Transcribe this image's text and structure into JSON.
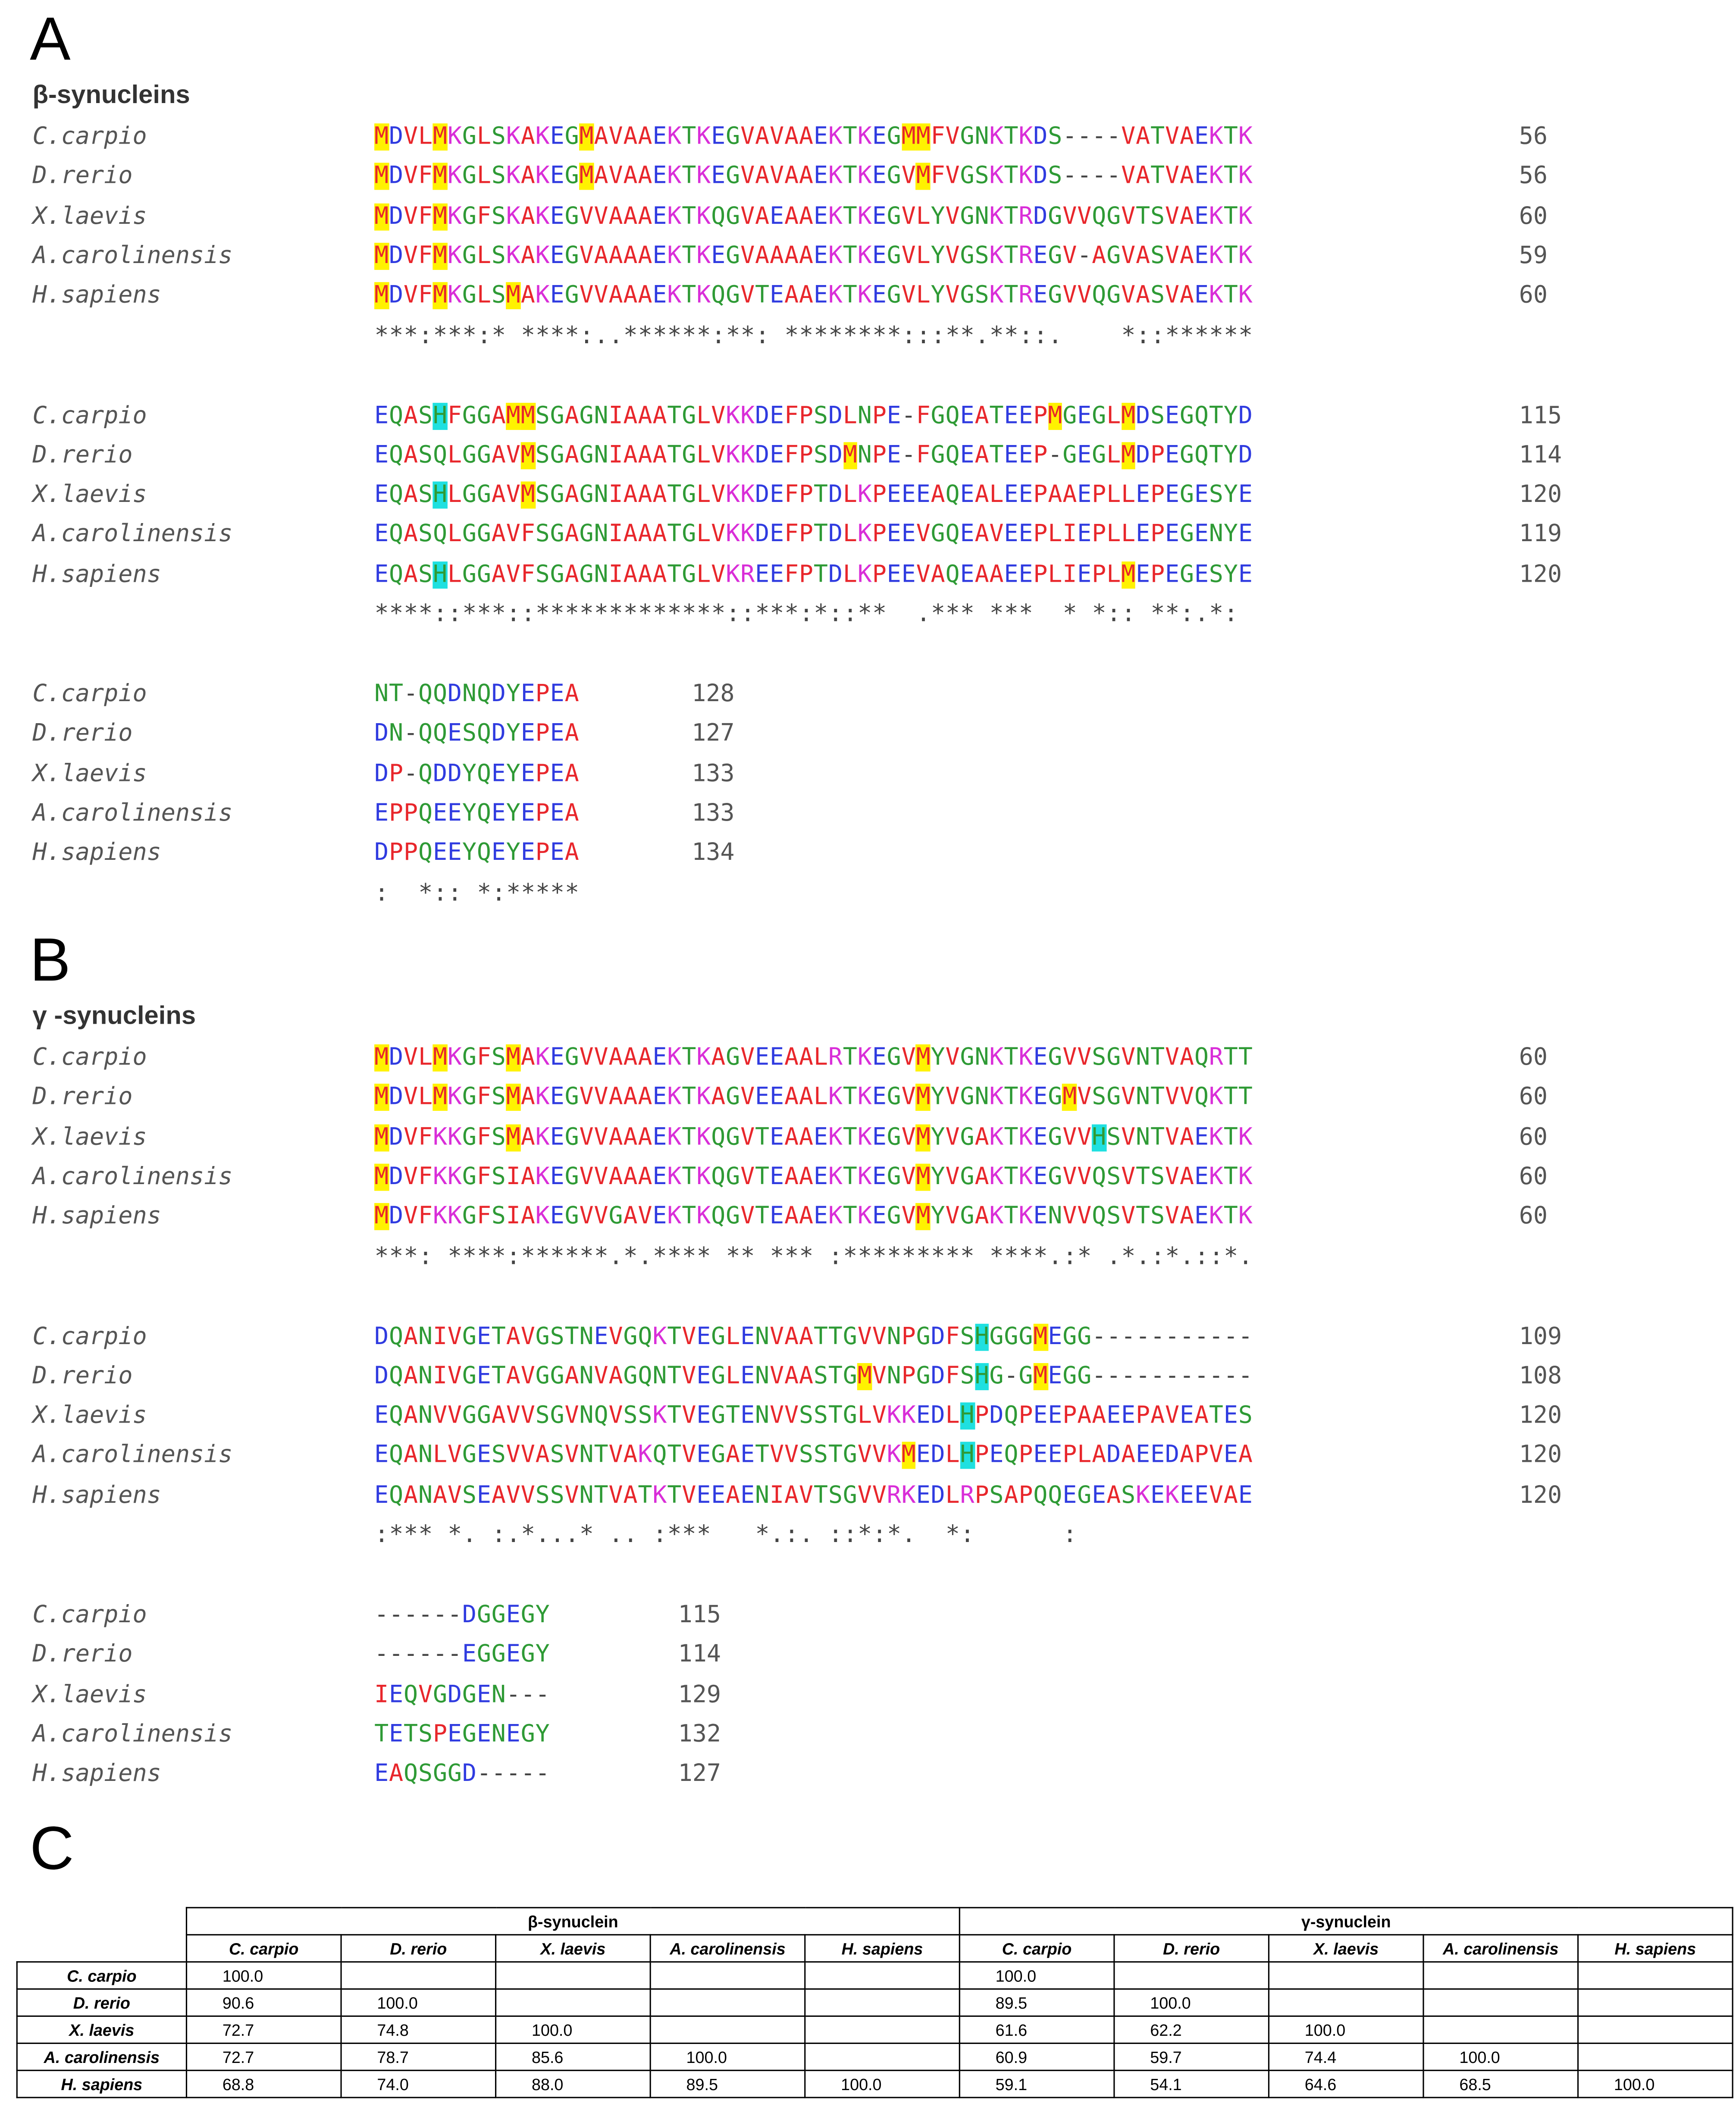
{
  "panels": {
    "a": "A",
    "b": "B",
    "c": "C"
  },
  "beta": {
    "title": "β-synucleins",
    "blocks": [
      {
        "rows": [
          {
            "species": "C.carpio",
            "seq": "MDVLMKGLSKAKEGMAVAAEKTKEGVAVAAEKTKEGMMFVGNKTKDS----VATVAEKTK",
            "num": "56"
          },
          {
            "species": "D.rerio",
            "seq": "MDVFMKGLSKAKEGMAVAAEKTKEGVAVAAEKTKEGVMFVGSKTKDS----VATVAEKTK",
            "num": "56"
          },
          {
            "species": "X.laevis",
            "seq": "MDVFMKGFSKAKEGVVAAAEKTKQGVAEAAEKTKEGVLYVGNKTRDGVVQGVTSVAEKTK",
            "num": "60"
          },
          {
            "species": "A.carolinensis",
            "seq": "MDVFMKGLSKAKEGVAAAAEKTKEGVAAAAEKTKEGVLYVGSKTREGV-AGVASVAEKTK",
            "num": "59"
          },
          {
            "species": "H.sapiens",
            "seq": "MDVFMKGLSMAKEGVVAAAEKTKQGVTEAAEKTKEGVLYVGSKTREGVVQGVASVAEKTK",
            "num": "60"
          }
        ],
        "cons": "***:***:* ****:..******:**: ********:::**.**::.    *::******"
      },
      {
        "rows": [
          {
            "species": "C.carpio",
            "seq": "EQASHFGGAMMSGAGNIAAATGLVKKDEFPSDLNPE-FGQEATEEPMGEGLMDSEGQTYD",
            "num": "115"
          },
          {
            "species": "D.rerio",
            "seq": "EQASQLGGAVMSGAGNIAAATGLVKKDEFPSDMNPE-FGQEATEEP-GEGLMDPEGQTYD",
            "num": "114"
          },
          {
            "species": "X.laevis",
            "seq": "EQASHLGGAVMSGAGNIAAATGLVKKDEFPTDLKPEEEAQEALEEPAAEPLLEPEGESYE",
            "num": "120"
          },
          {
            "species": "A.carolinensis",
            "seq": "EQASQLGGAVFSGAGNIAAATGLVKKDEFPTDLKPEEVGQEAVEEPLIEPLLEPEGENYE",
            "num": "119"
          },
          {
            "species": "H.sapiens",
            "seq": "EQASHLGGAVFSGAGNIAAATGLVKREEFPTDLKPEEVAQEAAEEPLIEPLMEPEGESYE",
            "num": "120"
          }
        ],
        "cons": "****::***::*************::***:*::**  .*** ***  * *:: **:.*:"
      },
      {
        "rows": [
          {
            "species": "C.carpio",
            "seq": "NT-QQDNQDYEPEA",
            "num": "128"
          },
          {
            "species": "D.rerio",
            "seq": "DN-QQESQDYEPEA",
            "num": "127"
          },
          {
            "species": "X.laevis",
            "seq": "DP-QDDYQEYEPEA",
            "num": "133"
          },
          {
            "species": "A.carolinensis",
            "seq": "EPPQEEYQEYEPEA",
            "num": "133"
          },
          {
            "species": "H.sapiens",
            "seq": "DPPQEEYQEYEPEA",
            "num": "134"
          }
        ],
        "cons": ":  *:: *:*****"
      }
    ]
  },
  "gamma": {
    "title": "γ -synucleins",
    "blocks": [
      {
        "rows": [
          {
            "species": "C.carpio",
            "seq": "MDVLMKGFSMAKEGVVAAAEKTKAGVEEAALRTKEGVMYVGNKTKEGVVSGVNTVAQRTT",
            "num": "60"
          },
          {
            "species": "D.rerio",
            "seq": "MDVLMKGFSMAKEGVVAAAEKTKAGVEEAALKTKEGVMYVGNKTKEGMVSGVNTVVQKTT",
            "num": "60"
          },
          {
            "species": "X.laevis",
            "seq": "MDVFKKGFSMAKEGVVAAAEKTKQGVTEAAEKTKEGVMYVGAKTKEGVVHSVNTVAEKTK",
            "num": "60"
          },
          {
            "species": "A.carolinensis",
            "seq": "MDVFKKGFSIAKEGVVAAAEKTKQGVTEAAEKTKEGVMYVGAKTKEGVVQSVTSVAEKTK",
            "num": "60"
          },
          {
            "species": "H.sapiens",
            "seq": "MDVFKKGFSIAKEGVVGAVEKTKQGVTEAAEKTKEGVMYVGAKTKENVVQSVTSVAEKTK",
            "num": "60"
          }
        ],
        "cons": "***: ****:******.*.**** ** *** :********* ****.:* .*.:*.::*."
      },
      {
        "rows": [
          {
            "species": "C.carpio",
            "seq": "DQANIVGETAVGSTNEVGQKTVEGLENVAATTGVVNPGDFSHGGGMEGG-----------",
            "num": "109"
          },
          {
            "species": "D.rerio",
            "seq": "DQANIVGETAVGGANVAGQNTVEGLENVAASTGMVNPGDFSHG-GMEGG-----------",
            "num": "108"
          },
          {
            "species": "X.laevis",
            "seq": "EQANVVGGAVVSGVNQVSSKTVEGTENVVSSTGLVKKEDLHPDQPEEPAAEEPAVEATES",
            "num": "120"
          },
          {
            "species": "A.carolinensis",
            "seq": "EQANLVGESVVASVNTVAKQTVEGAETVVSSTGVVKMEDLHPEQPEEPLADAEEDAPVEA",
            "num": "120"
          },
          {
            "species": "H.sapiens",
            "seq": "EQANAVSEAVVSSVNTVATKTVEEAENIAVTSGVVRKEDLRPSAPQQEGEASKEKEEVAE",
            "num": "120"
          }
        ],
        "cons": ":*** *. :.*...* .. :***   *.:. ::*:*.  *:      :           "
      },
      {
        "rows": [
          {
            "species": "C.carpio",
            "seq": "------DGGEGY",
            "num": "115"
          },
          {
            "species": "D.rerio",
            "seq": "------EGGEGY",
            "num": "114"
          },
          {
            "species": "X.laevis",
            "seq": "IEQVGDGEN---",
            "num": "129"
          },
          {
            "species": "A.carolinensis",
            "seq": "TETSPEGENEGY",
            "num": "132"
          },
          {
            "species": "H.sapiens",
            "seq": "EAQSGGD-----",
            "num": "127"
          }
        ],
        "cons": ""
      }
    ]
  },
  "table": {
    "group_headers": [
      "β-synuclein",
      "γ-synuclein"
    ],
    "species_headers": [
      "C. carpio",
      "D. rerio",
      "X. laevis",
      "A. carolinensis",
      "H. sapiens"
    ],
    "rows": [
      {
        "label": "C. carpio",
        "beta": [
          "100.0",
          "",
          "",
          "",
          ""
        ],
        "gamma": [
          "100.0",
          "",
          "",
          "",
          ""
        ]
      },
      {
        "label": "D. rerio",
        "beta": [
          "90.6",
          "100.0",
          "",
          "",
          ""
        ],
        "gamma": [
          "89.5",
          "100.0",
          "",
          "",
          ""
        ]
      },
      {
        "label": "X. laevis",
        "beta": [
          "72.7",
          "74.8",
          "100.0",
          "",
          ""
        ],
        "gamma": [
          "61.6",
          "62.2",
          "100.0",
          "",
          ""
        ]
      },
      {
        "label": "A. carolinensis",
        "beta": [
          "72.7",
          "78.7",
          "85.6",
          "100.0",
          ""
        ],
        "gamma": [
          "60.9",
          "59.7",
          "74.4",
          "100.0",
          ""
        ]
      },
      {
        "label": "H. sapiens",
        "beta": [
          "68.8",
          "74.0",
          "88.0",
          "89.5",
          "100.0"
        ],
        "gamma": [
          "59.1",
          "54.1",
          "64.6",
          "68.5",
          "100.0"
        ]
      }
    ]
  },
  "colors": {
    "acidic": "#2f3be0",
    "basic": "#d92ed8",
    "hydrophobic": "#e8262b",
    "polar": "#2e9a35",
    "highlight_met": "#fff200",
    "highlight_his": "#1fe0e0"
  },
  "highlights": {
    "beta": [
      [
        [
          0,
          0,
          "y"
        ],
        [
          0,
          4,
          "y"
        ],
        [
          0,
          14,
          "y"
        ],
        [
          0,
          36,
          "y"
        ],
        [
          0,
          37,
          "y"
        ],
        [
          1,
          0,
          "y"
        ],
        [
          1,
          4,
          "y"
        ],
        [
          1,
          14,
          "y"
        ],
        [
          1,
          37,
          "y"
        ],
        [
          2,
          0,
          "y"
        ],
        [
          2,
          4,
          "y"
        ],
        [
          3,
          0,
          "y"
        ],
        [
          3,
          4,
          "y"
        ],
        [
          4,
          0,
          "y"
        ],
        [
          4,
          4,
          "y"
        ],
        [
          4,
          9,
          "y"
        ]
      ],
      [
        [
          0,
          4,
          "c"
        ],
        [
          0,
          9,
          "y"
        ],
        [
          0,
          10,
          "y"
        ],
        [
          0,
          46,
          "y"
        ],
        [
          0,
          51,
          "y"
        ],
        [
          1,
          10,
          "y"
        ],
        [
          1,
          32,
          "y"
        ],
        [
          1,
          51,
          "y"
        ],
        [
          2,
          4,
          "c"
        ],
        [
          2,
          10,
          "y"
        ],
        [
          4,
          4,
          "c"
        ],
        [
          4,
          51,
          "y"
        ]
      ],
      []
    ],
    "gamma": [
      [
        [
          0,
          0,
          "y"
        ],
        [
          0,
          4,
          "y"
        ],
        [
          0,
          9,
          "y"
        ],
        [
          0,
          37,
          "y"
        ],
        [
          1,
          0,
          "y"
        ],
        [
          1,
          4,
          "y"
        ],
        [
          1,
          9,
          "y"
        ],
        [
          1,
          37,
          "y"
        ],
        [
          1,
          47,
          "y"
        ],
        [
          2,
          0,
          "y"
        ],
        [
          2,
          9,
          "y"
        ],
        [
          2,
          37,
          "y"
        ],
        [
          2,
          49,
          "c"
        ],
        [
          3,
          0,
          "y"
        ],
        [
          3,
          37,
          "y"
        ],
        [
          4,
          0,
          "y"
        ],
        [
          4,
          37,
          "y"
        ]
      ],
      [
        [
          0,
          41,
          "c"
        ],
        [
          0,
          45,
          "y"
        ],
        [
          1,
          33,
          "y"
        ],
        [
          1,
          41,
          "c"
        ],
        [
          1,
          45,
          "y"
        ],
        [
          2,
          40,
          "c"
        ],
        [
          3,
          36,
          "y"
        ],
        [
          3,
          40,
          "c"
        ]
      ],
      []
    ]
  }
}
